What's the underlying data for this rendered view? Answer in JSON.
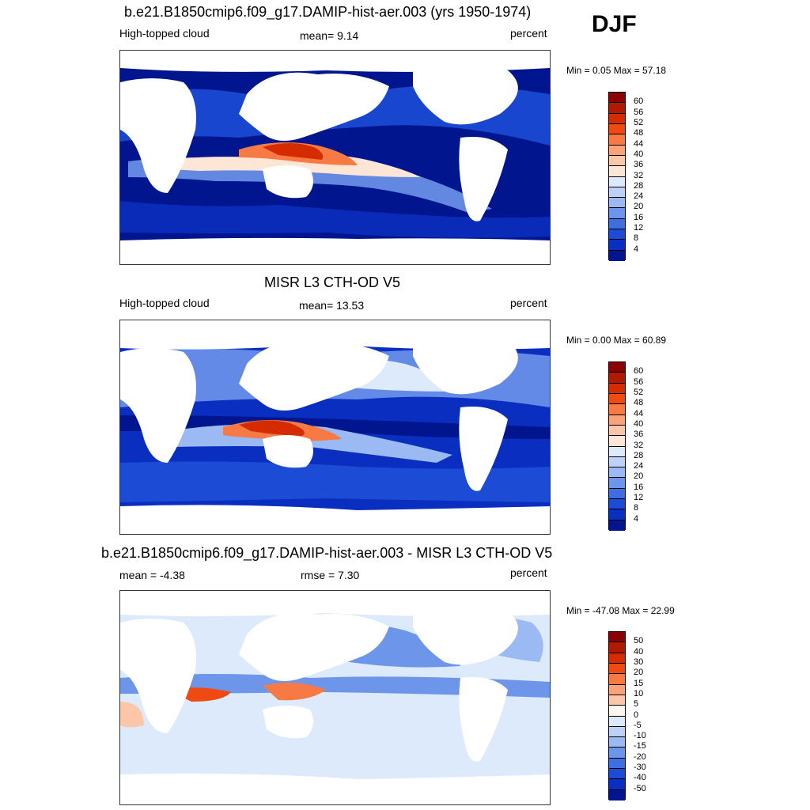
{
  "season": "DJF",
  "panels": [
    {
      "title": "b.e21.B1850cmip6.f09_g17.DAMIP-hist-aer.003 (yrs 1950-1974)",
      "left_label": "High-topped cloud",
      "center_label": "mean=   9.14",
      "right_label": "percent",
      "minmax": "Min =   0.05 Max =  57.18",
      "colorbar": {
        "labels": [
          "60",
          "56",
          "52",
          "48",
          "44",
          "40",
          "36",
          "32",
          "28",
          "24",
          "20",
          "16",
          "12",
          "8",
          "4"
        ],
        "colors": [
          "#8b0000",
          "#b01a00",
          "#d42c00",
          "#ee4a12",
          "#f77a45",
          "#fba27a",
          "#fcc7a8",
          "#fde6d6",
          "#dceafb",
          "#bcd3f7",
          "#9bb9f2",
          "#6d95ea",
          "#3f6ee0",
          "#1c4bd6",
          "#0a2fc0",
          "#00158e"
        ]
      }
    },
    {
      "title": "MISR L3 CTH-OD V5",
      "left_label": "High-topped cloud",
      "center_label": "mean=  13.53",
      "right_label": "percent",
      "minmax": "Min =   0.00 Max =  60.89",
      "colorbar": {
        "labels": [
          "60",
          "56",
          "52",
          "48",
          "44",
          "40",
          "36",
          "32",
          "28",
          "24",
          "20",
          "16",
          "12",
          "8",
          "4"
        ],
        "colors": [
          "#8b0000",
          "#b01a00",
          "#d42c00",
          "#ee4a12",
          "#f77a45",
          "#fba27a",
          "#fcc7a8",
          "#fde6d6",
          "#dceafb",
          "#bcd3f7",
          "#9bb9f2",
          "#6d95ea",
          "#3f6ee0",
          "#1c4bd6",
          "#0a2fc0",
          "#00158e"
        ]
      }
    },
    {
      "title": "b.e21.B1850cmip6.f09_g17.DAMIP-hist-aer.003 - MISR L3 CTH-OD V5",
      "left_label": "mean =  -4.38",
      "center_label": "rmse =   7.30",
      "right_label": "percent",
      "minmax": "Min = -47.08 Max =  22.99",
      "colorbar": {
        "labels": [
          "50",
          "40",
          "30",
          "20",
          "15",
          "10",
          "5",
          "0",
          "-5",
          "-10",
          "-15",
          "-20",
          "-30",
          "-40",
          "-50"
        ],
        "colors": [
          "#8b0000",
          "#b01a00",
          "#d42c00",
          "#ee4a12",
          "#f77a45",
          "#fba27a",
          "#fcc7a8",
          "#fff6ee",
          "#dceafb",
          "#bcd3f7",
          "#9bb9f2",
          "#6d95ea",
          "#3f6ee0",
          "#1c4bd6",
          "#0a2fc0",
          "#00158e"
        ]
      }
    }
  ],
  "palette": {
    "ocean_deep": "#00158e",
    "ocean_mid": "#1c4bd6",
    "ocean_light": "#6d95ea",
    "pale": "#dceafb",
    "warm": "#f77a45",
    "hot": "#d42c00",
    "land": "#ffffff"
  }
}
